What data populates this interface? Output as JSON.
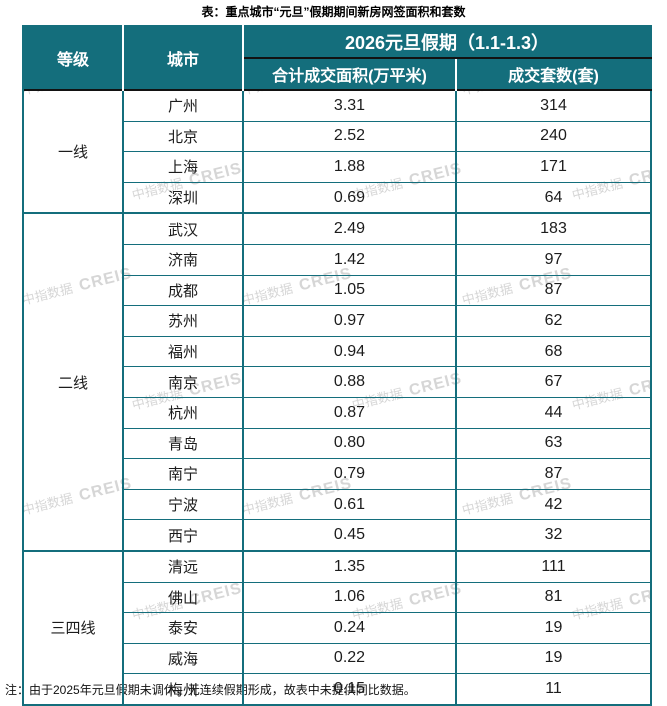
{
  "title": "表：重点城市“元旦”假期期间新房网签面积和套数",
  "note": "注：由于2025年元旦假期未调休，无连续假期形成，故表中未提供同比数据。",
  "watermark": {
    "cn": "中指数据",
    "en": "CREIS"
  },
  "colors": {
    "header_bg": "#146e7c",
    "border": "#146e7c",
    "header_divider": "#121212",
    "header_text": "#ffffff",
    "body_text": "#1c1c1c",
    "watermark": "#b5b5b5"
  },
  "table_header": {
    "tier": "等级",
    "city": "城市",
    "period": "2026元旦假期（1.1-1.3）",
    "area": "合计成交面积(万平米)",
    "units": "成交套数(套)"
  },
  "chart_data": {
    "type": "table",
    "title": "表：重点城市“元旦”假期期间新房网签面积和套数",
    "columns": [
      "等级",
      "城市",
      "合计成交面积(万平米)",
      "成交套数(套)"
    ],
    "groups": [
      {
        "tier": "一线",
        "rows": [
          {
            "city": "广州",
            "area": "3.31",
            "units": "314"
          },
          {
            "city": "北京",
            "area": "2.52",
            "units": "240"
          },
          {
            "city": "上海",
            "area": "1.88",
            "units": "171"
          },
          {
            "city": "深圳",
            "area": "0.69",
            "units": "64"
          }
        ]
      },
      {
        "tier": "二线",
        "rows": [
          {
            "city": "武汉",
            "area": "2.49",
            "units": "183"
          },
          {
            "city": "济南",
            "area": "1.42",
            "units": "97"
          },
          {
            "city": "成都",
            "area": "1.05",
            "units": "87"
          },
          {
            "city": "苏州",
            "area": "0.97",
            "units": "62"
          },
          {
            "city": "福州",
            "area": "0.94",
            "units": "68"
          },
          {
            "city": "南京",
            "area": "0.88",
            "units": "67"
          },
          {
            "city": "杭州",
            "area": "0.87",
            "units": "44"
          },
          {
            "city": "青岛",
            "area": "0.80",
            "units": "63"
          },
          {
            "city": "南宁",
            "area": "0.79",
            "units": "87"
          },
          {
            "city": "宁波",
            "area": "0.61",
            "units": "42"
          },
          {
            "city": "西宁",
            "area": "0.45",
            "units": "32"
          }
        ]
      },
      {
        "tier": "三四线",
        "rows": [
          {
            "city": "清远",
            "area": "1.35",
            "units": "111"
          },
          {
            "city": "佛山",
            "area": "1.06",
            "units": "81"
          },
          {
            "city": "泰安",
            "area": "0.24",
            "units": "19"
          },
          {
            "city": "威海",
            "area": "0.22",
            "units": "19"
          },
          {
            "city": "梅州",
            "area": "0.15",
            "units": "11"
          }
        ]
      }
    ],
    "note": "注：由于2025年元旦假期未调休，无连续假期形成，故表中未提供同比数据。"
  }
}
